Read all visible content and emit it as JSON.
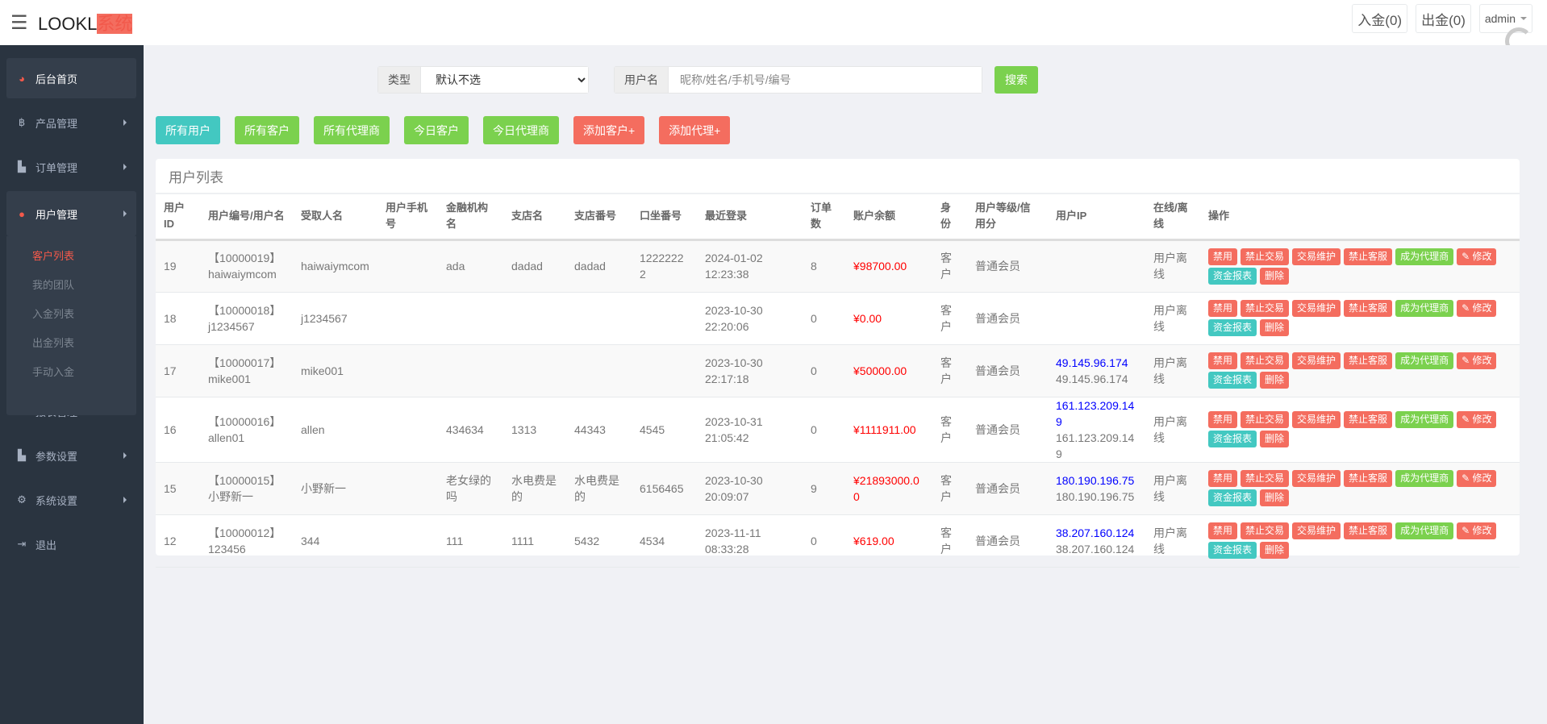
{
  "header": {
    "logo_main": "LOOKL",
    "logo_accent": "系统",
    "deposit": "入金(0)",
    "withdraw": "出金(0)",
    "user": "admin"
  },
  "sidebar": {
    "items": [
      {
        "label": "后台首页",
        "icon": "dashboard-icon"
      },
      {
        "label": "产品管理",
        "icon": "bitcoin-icon"
      },
      {
        "label": "订单管理",
        "icon": "copy-icon"
      },
      {
        "label": "用户管理",
        "icon": "user-icon"
      },
      {
        "label": "报表管理",
        "icon": "yen-icon"
      },
      {
        "label": "参数设置",
        "icon": "copy-icon"
      },
      {
        "label": "系统设置",
        "icon": "gears-icon"
      },
      {
        "label": "退出",
        "icon": "sign-out-icon"
      }
    ],
    "sub_items": [
      "客户列表",
      "我的团队",
      "入金列表",
      "出金列表",
      "手动入金"
    ]
  },
  "search": {
    "type_label": "类型",
    "type_value": "默认不选",
    "user_label": "用户名",
    "user_placeholder": "昵称/姓名/手机号/编号",
    "button": "搜索"
  },
  "filters": [
    "所有用户",
    "所有客户",
    "所有代理商",
    "今日客户",
    "今日代理商",
    "添加客户+",
    "添加代理+"
  ],
  "panel": {
    "title": "用户列表"
  },
  "table": {
    "headers": [
      "用户ID",
      "用户编号/用户名",
      "受取人名",
      "用户手机号",
      "金融机构名",
      "支店名",
      "支店番号",
      "口坐番号",
      "最近登录",
      "订单数",
      "账户余额",
      "身份",
      "用户等级/信用分",
      "用户IP",
      "在线/离线",
      "操作"
    ],
    "rows": [
      {
        "id": "19",
        "code": "【10000019】",
        "username": "haiwaiymcom",
        "payee": "haiwaiymcom",
        "phone": "",
        "bank": "ada",
        "branch": "dadad",
        "branch_no": "dadad",
        "account": "12222222",
        "login_date": "2024-01-02",
        "login_time": "12:23:38",
        "orders": "8",
        "balance": "¥98700.00",
        "role": "客户",
        "level": "普通会员",
        "ip1": "",
        "ip2": "",
        "status": "用户离线"
      },
      {
        "id": "18",
        "code": "【10000018】",
        "username": "j1234567",
        "payee": "j1234567",
        "phone": "",
        "bank": "",
        "branch": "",
        "branch_no": "",
        "account": "",
        "login_date": "2023-10-30",
        "login_time": "22:20:06",
        "orders": "0",
        "balance": "¥0.00",
        "role": "客户",
        "level": "普通会员",
        "ip1": "",
        "ip2": "",
        "status": "用户离线"
      },
      {
        "id": "17",
        "code": "【10000017】",
        "username": "mike001",
        "payee": "mike001",
        "phone": "",
        "bank": "",
        "branch": "",
        "branch_no": "",
        "account": "",
        "login_date": "2023-10-30",
        "login_time": "22:17:18",
        "orders": "0",
        "balance": "¥50000.00",
        "role": "客户",
        "level": "普通会员",
        "ip1": "49.145.96.174",
        "ip2": "49.145.96.174",
        "status": "用户离线"
      },
      {
        "id": "16",
        "code": "【10000016】",
        "username": "allen01",
        "payee": "allen",
        "phone": "",
        "bank": "434634",
        "branch": "1313",
        "branch_no": "44343",
        "account": "4545",
        "login_date": "2023-10-31",
        "login_time": "21:05:42",
        "orders": "0",
        "balance": "¥1111911.00",
        "role": "客户",
        "level": "普通会员",
        "ip1": "161.123.209.149",
        "ip2": "161.123.209.149",
        "status": "用户离线"
      },
      {
        "id": "15",
        "code": "【10000015】",
        "username": "小野新一",
        "payee": "小野新一",
        "phone": "",
        "bank": "老女绿的吗",
        "branch": "水电费是的",
        "branch_no": "水电费是的",
        "account": "6156465",
        "login_date": "2023-10-30",
        "login_time": "20:09:07",
        "orders": "9",
        "balance": "¥21893000.00",
        "role": "客户",
        "level": "普通会员",
        "ip1": "180.190.196.75",
        "ip2": "180.190.196.75",
        "status": "用户离线"
      },
      {
        "id": "12",
        "code": "【10000012】",
        "username": "123456",
        "payee": "344",
        "phone": "",
        "bank": "111",
        "branch": "1111",
        "branch_no": "5432",
        "account": "4534",
        "login_date": "2023-11-11",
        "login_time": "08:33:28",
        "orders": "0",
        "balance": "¥619.00",
        "role": "客户",
        "level": "普通会员",
        "ip1": "38.207.160.124",
        "ip2": "38.207.160.124",
        "status": "用户离线"
      }
    ],
    "actions": [
      {
        "label": "禁用",
        "color": "red"
      },
      {
        "label": "禁止交易",
        "color": "red"
      },
      {
        "label": "交易维护",
        "color": "red"
      },
      {
        "label": "禁止客服",
        "color": "red"
      },
      {
        "label": "成为代理商",
        "color": "green"
      },
      {
        "label": "✎ 修改",
        "color": "red"
      },
      {
        "label": "资金报表",
        "color": "teal"
      },
      {
        "label": "删除",
        "color": "red"
      }
    ]
  },
  "colors": {
    "accent": "#f2594b",
    "teal": "#43c8c1",
    "green": "#7bd14e",
    "red": "#f46d5f",
    "sidebar": "#2a3440"
  }
}
